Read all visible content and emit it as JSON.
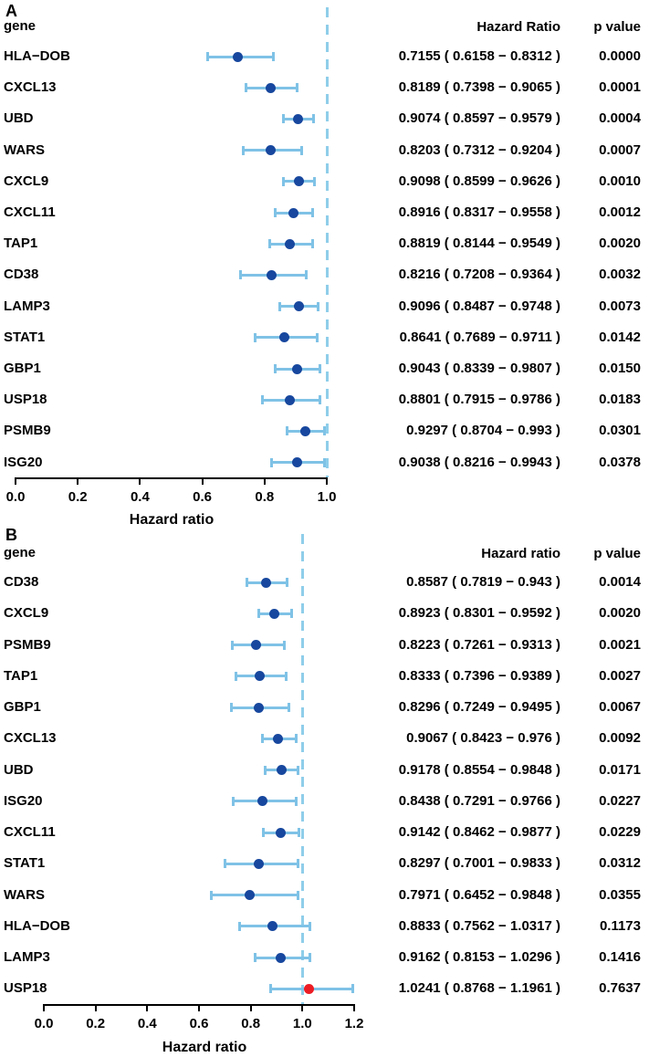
{
  "colors": {
    "bar_blue": "#7FC2E6",
    "dash_blue": "#8FCEEA",
    "dot_blue": "#17479E",
    "dot_red": "#EC1C24",
    "axis_black": "#000000",
    "text_black": "#000000"
  },
  "chart_data": [
    {
      "type": "forest",
      "panel_label": "A",
      "col_headers": {
        "gene": "gene",
        "hazard_ratio": "Hazard Ratio",
        "p_value": "p value"
      },
      "xlabel": "Hazard ratio",
      "xlim": [
        0.0,
        1.0
      ],
      "xticks": [
        0.0,
        0.2,
        0.4,
        0.6,
        0.8,
        1.0
      ],
      "xtick_labels": [
        "0.0",
        "0.2",
        "0.4",
        "0.6",
        "0.8",
        "1.0"
      ],
      "ref_line": 1.0,
      "legend": "dashed vertical reference line at hazard ratio = 1.0",
      "rows": [
        {
          "gene": "HLA−DOB",
          "hr": 0.7155,
          "ci_low": 0.6158,
          "ci_high": 0.8312,
          "hr_ci_label": "0.7155 ( 0.6158 − 0.8312 )",
          "p_value": "0.0000",
          "dot": "blue"
        },
        {
          "gene": "CXCL13",
          "hr": 0.8189,
          "ci_low": 0.7398,
          "ci_high": 0.9065,
          "hr_ci_label": "0.8189 ( 0.7398 − 0.9065 )",
          "p_value": "0.0001",
          "dot": "blue"
        },
        {
          "gene": "UBD",
          "hr": 0.9074,
          "ci_low": 0.8597,
          "ci_high": 0.9579,
          "hr_ci_label": "0.9074 ( 0.8597 − 0.9579 )",
          "p_value": "0.0004",
          "dot": "blue"
        },
        {
          "gene": "WARS",
          "hr": 0.8203,
          "ci_low": 0.7312,
          "ci_high": 0.9204,
          "hr_ci_label": "0.8203 ( 0.7312 − 0.9204 )",
          "p_value": "0.0007",
          "dot": "blue"
        },
        {
          "gene": "CXCL9",
          "hr": 0.9098,
          "ci_low": 0.8599,
          "ci_high": 0.9626,
          "hr_ci_label": "0.9098 ( 0.8599 − 0.9626 )",
          "p_value": "0.0010",
          "dot": "blue"
        },
        {
          "gene": "CXCL11",
          "hr": 0.8916,
          "ci_low": 0.8317,
          "ci_high": 0.9558,
          "hr_ci_label": "0.8916 ( 0.8317 − 0.9558 )",
          "p_value": "0.0012",
          "dot": "blue"
        },
        {
          "gene": "TAP1",
          "hr": 0.8819,
          "ci_low": 0.8144,
          "ci_high": 0.9549,
          "hr_ci_label": "0.8819 ( 0.8144 − 0.9549 )",
          "p_value": "0.0020",
          "dot": "blue"
        },
        {
          "gene": "CD38",
          "hr": 0.8216,
          "ci_low": 0.7208,
          "ci_high": 0.9364,
          "hr_ci_label": "0.8216 ( 0.7208 − 0.9364 )",
          "p_value": "0.0032",
          "dot": "blue"
        },
        {
          "gene": "LAMP3",
          "hr": 0.9096,
          "ci_low": 0.8487,
          "ci_high": 0.9748,
          "hr_ci_label": "0.9096 ( 0.8487 − 0.9748 )",
          "p_value": "0.0073",
          "dot": "blue"
        },
        {
          "gene": "STAT1",
          "hr": 0.8641,
          "ci_low": 0.7689,
          "ci_high": 0.9711,
          "hr_ci_label": "0.8641 ( 0.7689 − 0.9711 )",
          "p_value": "0.0142",
          "dot": "blue"
        },
        {
          "gene": "GBP1",
          "hr": 0.9043,
          "ci_low": 0.8339,
          "ci_high": 0.9807,
          "hr_ci_label": "0.9043 ( 0.8339 − 0.9807 )",
          "p_value": "0.0150",
          "dot": "blue"
        },
        {
          "gene": "USP18",
          "hr": 0.8801,
          "ci_low": 0.7915,
          "ci_high": 0.9786,
          "hr_ci_label": "0.8801 ( 0.7915 − 0.9786 )",
          "p_value": "0.0183",
          "dot": "blue"
        },
        {
          "gene": "PSMB9",
          "hr": 0.9297,
          "ci_low": 0.8704,
          "ci_high": 0.993,
          "hr_ci_label": "0.9297 ( 0.8704 − 0.993 )",
          "p_value": "0.0301",
          "dot": "blue"
        },
        {
          "gene": "ISG20",
          "hr": 0.9038,
          "ci_low": 0.8216,
          "ci_high": 0.9943,
          "hr_ci_label": "0.9038 ( 0.8216 − 0.9943 )",
          "p_value": "0.0378",
          "dot": "blue"
        }
      ]
    },
    {
      "type": "forest",
      "panel_label": "B",
      "col_headers": {
        "gene": "gene",
        "hazard_ratio": "Hazard ratio",
        "p_value": "p value"
      },
      "xlabel": "Hazard ratio",
      "xlim": [
        0.0,
        1.2
      ],
      "xticks": [
        0.0,
        0.2,
        0.4,
        0.6,
        0.8,
        1.0,
        1.2
      ],
      "xtick_labels": [
        "0.0",
        "0.2",
        "0.4",
        "0.6",
        "0.8",
        "1.0",
        "1.2"
      ],
      "ref_line": 1.0,
      "legend": "dashed vertical reference line at hazard ratio = 1.0",
      "rows": [
        {
          "gene": "CD38",
          "hr": 0.8587,
          "ci_low": 0.7819,
          "ci_high": 0.943,
          "hr_ci_label": "0.8587 ( 0.7819 − 0.943 )",
          "p_value": "0.0014",
          "dot": "blue"
        },
        {
          "gene": "CXCL9",
          "hr": 0.8923,
          "ci_low": 0.8301,
          "ci_high": 0.9592,
          "hr_ci_label": "0.8923 ( 0.8301 − 0.9592 )",
          "p_value": "0.0020",
          "dot": "blue"
        },
        {
          "gene": "PSMB9",
          "hr": 0.8223,
          "ci_low": 0.7261,
          "ci_high": 0.9313,
          "hr_ci_label": "0.8223 ( 0.7261 − 0.9313 )",
          "p_value": "0.0021",
          "dot": "blue"
        },
        {
          "gene": "TAP1",
          "hr": 0.8333,
          "ci_low": 0.7396,
          "ci_high": 0.9389,
          "hr_ci_label": "0.8333 ( 0.7396 − 0.9389 )",
          "p_value": "0.0027",
          "dot": "blue"
        },
        {
          "gene": "GBP1",
          "hr": 0.8296,
          "ci_low": 0.7249,
          "ci_high": 0.9495,
          "hr_ci_label": "0.8296 ( 0.7249 − 0.9495 )",
          "p_value": "0.0067",
          "dot": "blue"
        },
        {
          "gene": "CXCL13",
          "hr": 0.9067,
          "ci_low": 0.8423,
          "ci_high": 0.976,
          "hr_ci_label": "0.9067 ( 0.8423 − 0.976 )",
          "p_value": "0.0092",
          "dot": "blue"
        },
        {
          "gene": "UBD",
          "hr": 0.9178,
          "ci_low": 0.8554,
          "ci_high": 0.9848,
          "hr_ci_label": "0.9178 ( 0.8554 − 0.9848 )",
          "p_value": "0.0171",
          "dot": "blue"
        },
        {
          "gene": "ISG20",
          "hr": 0.8438,
          "ci_low": 0.7291,
          "ci_high": 0.9766,
          "hr_ci_label": "0.8438 ( 0.7291 − 0.9766 )",
          "p_value": "0.0227",
          "dot": "blue"
        },
        {
          "gene": "CXCL11",
          "hr": 0.9142,
          "ci_low": 0.8462,
          "ci_high": 0.9877,
          "hr_ci_label": "0.9142 ( 0.8462 − 0.9877 )",
          "p_value": "0.0229",
          "dot": "blue"
        },
        {
          "gene": "STAT1",
          "hr": 0.8297,
          "ci_low": 0.7001,
          "ci_high": 0.9833,
          "hr_ci_label": "0.8297 ( 0.7001 − 0.9833 )",
          "p_value": "0.0312",
          "dot": "blue"
        },
        {
          "gene": "WARS",
          "hr": 0.7971,
          "ci_low": 0.6452,
          "ci_high": 0.9848,
          "hr_ci_label": "0.7971 ( 0.6452 − 0.9848 )",
          "p_value": "0.0355",
          "dot": "blue"
        },
        {
          "gene": "HLA−DOB",
          "hr": 0.8833,
          "ci_low": 0.7562,
          "ci_high": 1.0317,
          "hr_ci_label": "0.8833 ( 0.7562 − 1.0317 )",
          "p_value": "0.1173",
          "dot": "blue"
        },
        {
          "gene": "LAMP3",
          "hr": 0.9162,
          "ci_low": 0.8153,
          "ci_high": 1.0296,
          "hr_ci_label": "0.9162 ( 0.8153 − 1.0296 )",
          "p_value": "0.1416",
          "dot": "blue"
        },
        {
          "gene": "USP18",
          "hr": 1.0241,
          "ci_low": 0.8768,
          "ci_high": 1.1961,
          "hr_ci_label": "1.0241 ( 0.8768 − 1.1961 )",
          "p_value": "0.7637",
          "dot": "red"
        }
      ]
    }
  ]
}
